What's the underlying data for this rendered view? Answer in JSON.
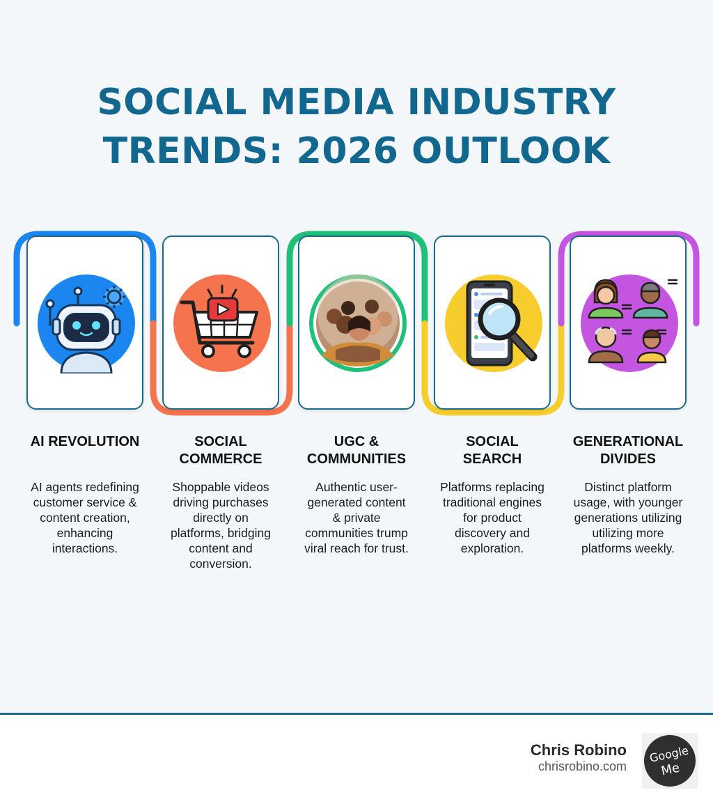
{
  "title": {
    "line1": "SOCIAL MEDIA INDUSTRY",
    "line2": "TRENDS: 2026 OUTLOOK"
  },
  "colors": {
    "title": "#12678f",
    "blue": "#1b86f0",
    "orange": "#f5734d",
    "green": "#1fc07a",
    "yellow": "#f7cd2e",
    "purple": "#c455e0",
    "card_border": "#1a6b87"
  },
  "trends": [
    {
      "title_lines": [
        "AI REVOLUTION",
        ""
      ],
      "description": [
        "AI agents redefining",
        "customer service &",
        "content creation,",
        "enhancing",
        "interactions."
      ],
      "icon": "robot-icon"
    },
    {
      "title_lines": [
        "SOCIAL",
        "COMMERCE"
      ],
      "description": [
        "Shoppable videos",
        "driving purchases",
        "directly on",
        "platforms, bridging",
        "content and",
        "conversion."
      ],
      "icon": "shopping-cart-play-icon"
    },
    {
      "title_lines": [
        "UGC &",
        "COMMUNITIES"
      ],
      "description": [
        "Authentic user-",
        "generated content",
        "& private",
        "communities trump",
        "viral reach for trust."
      ],
      "icon": "group-selfie-icon"
    },
    {
      "title_lines": [
        "SOCIAL",
        "SEARCH"
      ],
      "description": [
        "Platforms replacing",
        "traditional engines",
        "for product",
        "discovery and",
        "exploration."
      ],
      "icon": "phone-magnifier-icon"
    },
    {
      "title_lines": [
        "GENERATIONAL",
        "DIVIDES"
      ],
      "description": [
        "Distinct platform",
        "usage, with younger",
        "generations utilizing",
        "utilizing more",
        "platforms weekly."
      ],
      "icon": "generations-people-icon"
    }
  ],
  "footer": {
    "author": "Chris Robino",
    "website": "chrisrobino.com",
    "badge_text_1": "Google",
    "badge_text_2": "Me"
  }
}
